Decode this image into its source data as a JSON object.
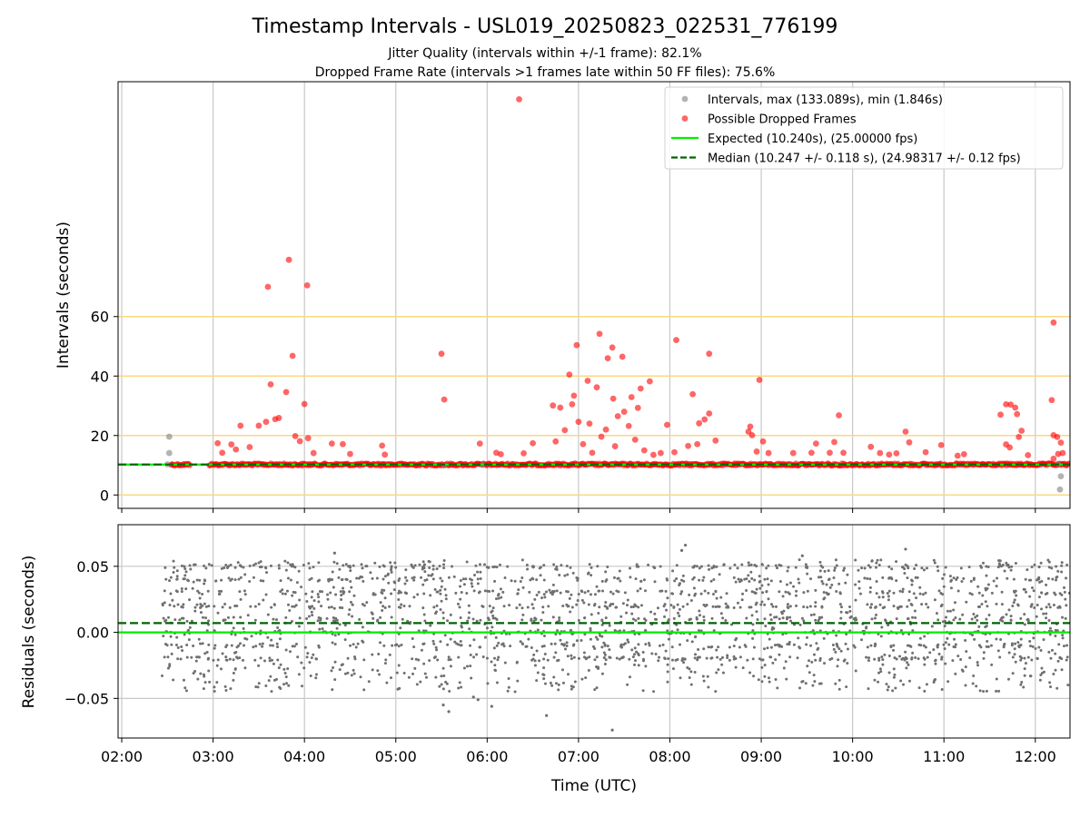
{
  "chart_data": [
    {
      "type": "scatter",
      "title": "Timestamp Intervals - USL019_20250823_022531_776199",
      "subtitles": [
        "Jitter Quality (intervals within +/-1 frame): 82.1%",
        "Dropped Frame Rate (intervals >1 frames late within 50 FF files): 75.6%"
      ],
      "xlabel": "",
      "ylabel": "Intervals (seconds)",
      "x_tick_labels": [
        "02:00",
        "03:00",
        "04:00",
        "05:00",
        "06:00",
        "07:00",
        "08:00",
        "09:00",
        "10:00",
        "11:00",
        "12:00"
      ],
      "xlim_hours": [
        1.96,
        12.38
      ],
      "yticks": [
        0,
        20,
        40,
        60
      ],
      "ylim": [
        -4.5,
        139
      ],
      "grid": "vertical lines at hours; horizontal orange lines at y ticks",
      "legend_position": "top-right",
      "legend": [
        {
          "label": "Intervals, max (133.089s), min (1.846s)",
          "kind": "gray-dot"
        },
        {
          "label": "Possible Dropped Frames",
          "kind": "red-dot"
        },
        {
          "label": "Expected (10.240s), (25.00000 fps)",
          "kind": "green-line"
        },
        {
          "label": "Median (10.247 +/- 0.118 s), (24.98317 +/- 0.12 fps)",
          "kind": "dashed-darkgreen-line"
        }
      ],
      "expected_interval": 10.24,
      "median_interval": 10.247,
      "baseline_span_hours": [
        2.42,
        12.38
      ],
      "gray_points": [
        [
          2.52,
          19.6
        ],
        [
          2.52,
          14.1
        ],
        [
          2.5,
          10.3
        ],
        [
          12.28,
          6.3
        ],
        [
          12.27,
          1.846
        ],
        [
          12.25,
          10.5
        ],
        [
          5.53,
          9.9
        ],
        [
          5.95,
          10.1
        ]
      ],
      "red_points": [
        [
          6.35,
          133.089
        ],
        [
          3.83,
          79.1
        ],
        [
          3.6,
          70.0
        ],
        [
          4.03,
          70.5
        ],
        [
          3.87,
          46.8
        ],
        [
          3.63,
          37.2
        ],
        [
          3.8,
          34.6
        ],
        [
          4.0,
          30.6
        ],
        [
          3.68,
          25.5
        ],
        [
          3.72,
          25.9
        ],
        [
          3.5,
          23.3
        ],
        [
          3.3,
          23.3
        ],
        [
          3.58,
          24.6
        ],
        [
          3.9,
          19.8
        ],
        [
          4.04,
          19.1
        ],
        [
          3.95,
          18.1
        ],
        [
          4.3,
          17.3
        ],
        [
          4.42,
          17.1
        ],
        [
          3.05,
          17.4
        ],
        [
          3.2,
          17.0
        ],
        [
          3.4,
          16.1
        ],
        [
          3.1,
          14.2
        ],
        [
          3.25,
          15.3
        ],
        [
          4.1,
          14.1
        ],
        [
          4.5,
          13.8
        ],
        [
          4.85,
          16.6
        ],
        [
          4.88,
          13.6
        ],
        [
          5.5,
          47.5
        ],
        [
          5.53,
          32.1
        ],
        [
          5.92,
          17.3
        ],
        [
          6.1,
          14.2
        ],
        [
          6.15,
          13.7
        ],
        [
          6.4,
          14.0
        ],
        [
          6.5,
          17.4
        ],
        [
          6.98,
          50.4
        ],
        [
          7.23,
          54.2
        ],
        [
          7.37,
          49.6
        ],
        [
          7.48,
          46.5
        ],
        [
          7.32,
          46.0
        ],
        [
          6.9,
          40.5
        ],
        [
          7.1,
          38.4
        ],
        [
          7.78,
          38.2
        ],
        [
          7.2,
          36.2
        ],
        [
          7.68,
          35.8
        ],
        [
          6.95,
          33.4
        ],
        [
          7.58,
          32.9
        ],
        [
          7.38,
          32.4
        ],
        [
          6.93,
          30.5
        ],
        [
          6.72,
          30.1
        ],
        [
          6.8,
          29.4
        ],
        [
          7.65,
          29.3
        ],
        [
          7.5,
          28.0
        ],
        [
          7.43,
          26.5
        ],
        [
          7.0,
          24.6
        ],
        [
          7.12,
          24.0
        ],
        [
          7.55,
          23.2
        ],
        [
          6.85,
          21.8
        ],
        [
          7.3,
          22.0
        ],
        [
          7.25,
          19.6
        ],
        [
          7.62,
          18.6
        ],
        [
          6.75,
          18.0
        ],
        [
          7.05,
          17.1
        ],
        [
          7.4,
          16.4
        ],
        [
          7.72,
          15.0
        ],
        [
          7.15,
          14.2
        ],
        [
          7.9,
          14.1
        ],
        [
          7.82,
          13.5
        ],
        [
          8.07,
          52.1
        ],
        [
          8.43,
          47.5
        ],
        [
          8.25,
          33.9
        ],
        [
          8.32,
          24.1
        ],
        [
          8.38,
          25.4
        ],
        [
          8.43,
          27.4
        ],
        [
          7.97,
          23.6
        ],
        [
          8.3,
          17.1
        ],
        [
          8.2,
          16.5
        ],
        [
          8.5,
          18.3
        ],
        [
          8.05,
          14.4
        ],
        [
          8.98,
          38.7
        ],
        [
          8.88,
          23.0
        ],
        [
          8.86,
          21.3
        ],
        [
          8.9,
          20.1
        ],
        [
          9.02,
          18.0
        ],
        [
          8.95,
          14.6
        ],
        [
          9.08,
          14.1
        ],
        [
          9.35,
          14.1
        ],
        [
          9.6,
          17.3
        ],
        [
          9.85,
          26.8
        ],
        [
          9.8,
          17.8
        ],
        [
          9.55,
          14.2
        ],
        [
          9.75,
          14.2
        ],
        [
          9.9,
          14.2
        ],
        [
          10.2,
          16.2
        ],
        [
          10.3,
          14.1
        ],
        [
          10.48,
          14.0
        ],
        [
          10.58,
          21.3
        ],
        [
          10.62,
          17.7
        ],
        [
          10.8,
          14.4
        ],
        [
          10.97,
          16.8
        ],
        [
          11.15,
          13.2
        ],
        [
          11.22,
          13.7
        ],
        [
          10.4,
          13.6
        ],
        [
          11.73,
          30.4
        ],
        [
          11.68,
          30.5
        ],
        [
          11.78,
          29.4
        ],
        [
          11.62,
          27.0
        ],
        [
          11.8,
          27.2
        ],
        [
          11.85,
          21.6
        ],
        [
          11.82,
          19.5
        ],
        [
          11.68,
          17.0
        ],
        [
          11.72,
          16.0
        ],
        [
          11.92,
          13.4
        ],
        [
          12.2,
          58.0
        ],
        [
          12.18,
          31.9
        ],
        [
          12.2,
          20.1
        ],
        [
          12.24,
          19.5
        ],
        [
          12.28,
          17.6
        ],
        [
          12.25,
          13.8
        ],
        [
          12.3,
          14.1
        ],
        [
          12.2,
          12.2
        ]
      ]
    },
    {
      "type": "scatter",
      "title": "",
      "xlabel": "Time (UTC)",
      "ylabel": "Residuals (seconds)",
      "yticks": [
        -0.05,
        0.0,
        0.05
      ],
      "ytick_labels": [
        "−0.05",
        "0.00",
        "0.05"
      ],
      "ylim": [
        -0.08,
        0.0815
      ],
      "x_tick_labels": [
        "02:00",
        "03:00",
        "04:00",
        "05:00",
        "06:00",
        "07:00",
        "08:00",
        "09:00",
        "10:00",
        "11:00",
        "12:00"
      ],
      "xlim_hours": [
        1.96,
        12.38
      ],
      "expected_residual": 0.0,
      "median_residual": 0.007,
      "residual_points_approx": {
        "count": 2300,
        "x_range_hours": [
          2.42,
          12.38
        ],
        "typical_range": [
          -0.045,
          0.055
        ]
      },
      "residual_outliers": [
        [
          5.58,
          -0.06
        ],
        [
          5.52,
          -0.055
        ],
        [
          5.85,
          -0.049
        ],
        [
          5.9,
          -0.051
        ],
        [
          6.05,
          -0.056
        ],
        [
          6.65,
          -0.063
        ],
        [
          7.37,
          -0.074
        ],
        [
          8.17,
          0.066
        ],
        [
          8.13,
          0.062
        ],
        [
          10.58,
          0.063
        ],
        [
          4.33,
          0.06
        ],
        [
          9.45,
          0.058
        ],
        [
          6.5,
          0.05
        ]
      ]
    }
  ]
}
